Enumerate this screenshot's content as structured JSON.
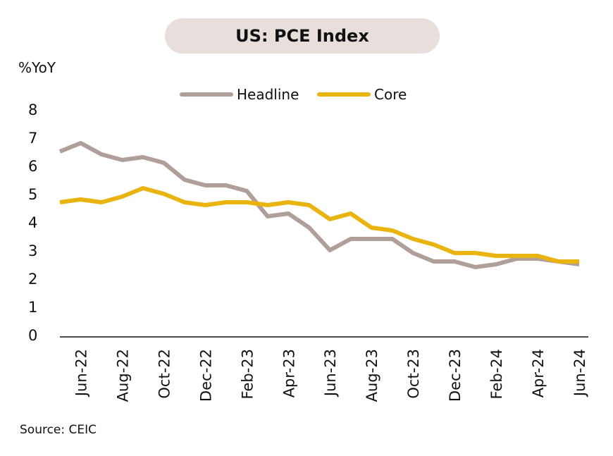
{
  "header": {
    "title": "US: PCE Index",
    "unit": "%YoY",
    "source": "Source: CEIC"
  },
  "colors": {
    "headline": "#b09e98",
    "core": "#eab410",
    "title_bg": "#e8dedb",
    "axis": "#111111"
  },
  "chart_data": {
    "type": "line",
    "title": "US: PCE Index",
    "ylabel": "%YoY",
    "ylim": [
      0,
      8
    ],
    "yticks": [
      0,
      1,
      2,
      3,
      4,
      5,
      6,
      7,
      8
    ],
    "grid": false,
    "legend": "top",
    "x": [
      "May-22",
      "Jun-22",
      "Jul-22",
      "Aug-22",
      "Sep-22",
      "Oct-22",
      "Nov-22",
      "Dec-22",
      "Jan-23",
      "Feb-23",
      "Mar-23",
      "Apr-23",
      "May-23",
      "Jun-23",
      "Jul-23",
      "Aug-23",
      "Sep-23",
      "Oct-23",
      "Nov-23",
      "Dec-23",
      "Jan-24",
      "Feb-24",
      "Mar-24",
      "Apr-24",
      "May-24",
      "Jun-24"
    ],
    "xtick_labels": [
      "Jun-22",
      "Aug-22",
      "Oct-22",
      "Dec-22",
      "Feb-23",
      "Apr-23",
      "Jun-23",
      "Aug-23",
      "Oct-23",
      "Dec-23",
      "Feb-24",
      "Apr-24",
      "Jun-24"
    ],
    "series": [
      {
        "name": "Headline",
        "values": [
          6.5,
          6.8,
          6.4,
          6.2,
          6.3,
          6.1,
          5.5,
          5.3,
          5.3,
          5.1,
          4.2,
          4.3,
          3.8,
          3.0,
          3.4,
          3.4,
          3.4,
          2.9,
          2.6,
          2.6,
          2.4,
          2.5,
          2.7,
          2.7,
          2.6,
          2.5
        ]
      },
      {
        "name": "Core",
        "values": [
          4.7,
          4.8,
          4.7,
          4.9,
          5.2,
          5.0,
          4.7,
          4.6,
          4.7,
          4.7,
          4.6,
          4.7,
          4.6,
          4.1,
          4.3,
          3.8,
          3.7,
          3.4,
          3.2,
          2.9,
          2.9,
          2.8,
          2.8,
          2.8,
          2.6,
          2.6
        ]
      }
    ]
  }
}
